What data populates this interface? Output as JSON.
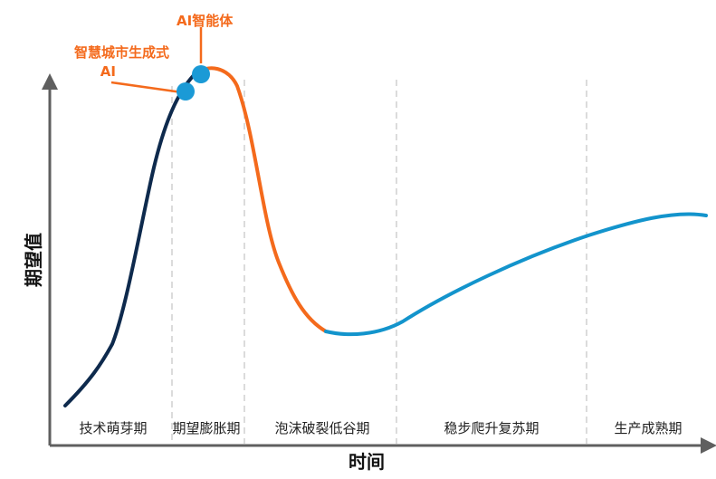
{
  "axes": {
    "y_label": "期望值",
    "x_label": "时间"
  },
  "phases": [
    {
      "label": "技术萌芽期"
    },
    {
      "label": "期望膨胀期"
    },
    {
      "label": "泡沫破裂低谷期"
    },
    {
      "label": "稳步爬升复苏期"
    },
    {
      "label": "生产成熟期"
    }
  ],
  "annotations": [
    {
      "label": "AI智能体"
    },
    {
      "label_line1": "智慧城市生成式",
      "label_line2": "AI"
    }
  ],
  "colors": {
    "axis": "#5f5f5f",
    "divider": "#c8c8c8",
    "curve_rising": "#0e2a4d",
    "curve_falling": "#f46a1c",
    "curve_recovery": "#1394cc",
    "marker_fill": "#1b9ad6",
    "annotation_text": "#f46a1c",
    "label_text": "#222222"
  }
}
